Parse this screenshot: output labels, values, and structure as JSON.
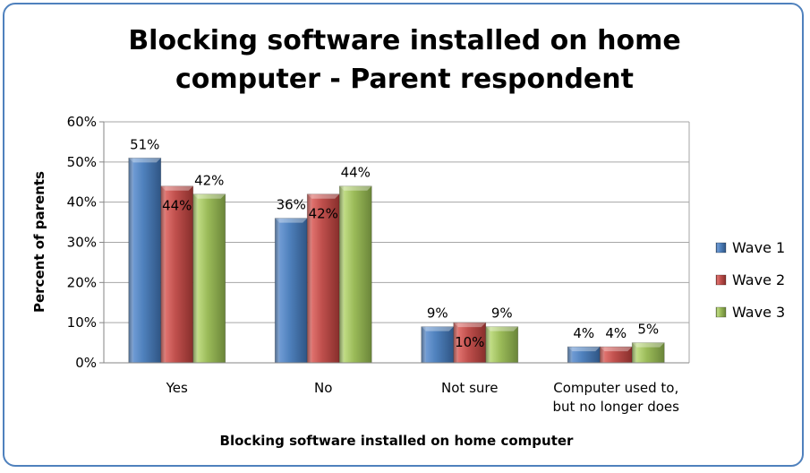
{
  "chart_data": {
    "type": "bar",
    "title_lines": [
      "Blocking software installed on home",
      "computer - Parent respondent"
    ],
    "xlabel": "Blocking software installed on home computer",
    "ylabel": "Percent of parents",
    "categories": [
      [
        "Yes"
      ],
      [
        "No"
      ],
      [
        "Not sure"
      ],
      [
        "Computer used to,",
        "but no longer does"
      ]
    ],
    "series": [
      {
        "name": "Wave 1",
        "values": [
          51,
          36,
          9,
          4
        ],
        "labels": [
          "51%",
          "36%",
          "9%",
          "4%"
        ],
        "color": "#4f81bd"
      },
      {
        "name": "Wave 2",
        "values": [
          44,
          42,
          10,
          4
        ],
        "labels": [
          "44%",
          "42%",
          "10%",
          "4%"
        ],
        "color": "#c0504d"
      },
      {
        "name": "Wave 3",
        "values": [
          42,
          44,
          9,
          5
        ],
        "labels": [
          "42%",
          "44%",
          "9%",
          "5%"
        ],
        "color": "#9bbb59"
      }
    ],
    "ylim": [
      0,
      60
    ],
    "yticks": [
      0,
      10,
      20,
      30,
      40,
      50,
      60
    ],
    "ytick_labels": [
      "0%",
      "10%",
      "20%",
      "30%",
      "40%",
      "50%",
      "60%"
    ],
    "grid": true,
    "legend": "right"
  }
}
